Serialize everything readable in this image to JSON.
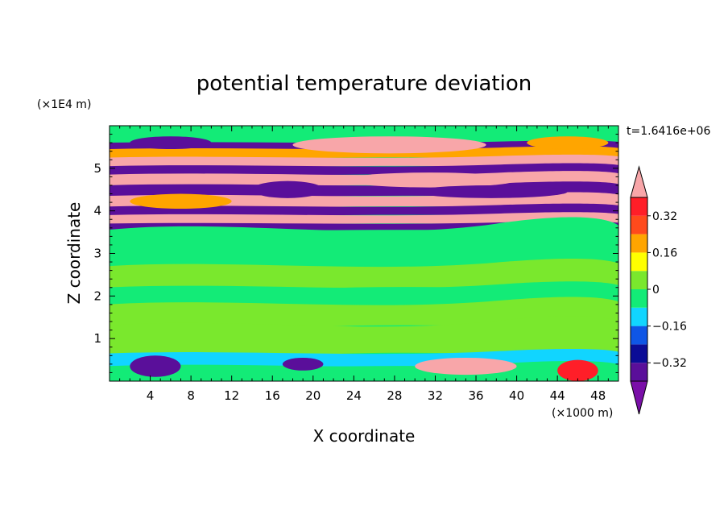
{
  "chart_data": {
    "type": "heatmap",
    "title": "potential temperature deviation",
    "xlabel": "X coordinate",
    "ylabel": "Z coordinate",
    "x_unit": "(×1000 m)",
    "y_unit": "(×1E4 m)",
    "time_label": "t=1.6416e+06",
    "xlim": [
      0,
      50
    ],
    "ylim": [
      0,
      6
    ],
    "x_ticks": [
      "4",
      "8",
      "12",
      "16",
      "20",
      "24",
      "28",
      "32",
      "36",
      "40",
      "44",
      "48"
    ],
    "y_ticks": [
      "1",
      "2",
      "3",
      "4",
      "5"
    ],
    "colorbar_labels": [
      "0.32",
      "0.16",
      "0",
      "−0.16",
      "−0.32"
    ],
    "levels": [
      -0.4,
      -0.32,
      -0.24,
      -0.16,
      -0.08,
      0.0,
      0.08,
      0.16,
      0.24,
      0.32,
      0.4
    ],
    "colors": [
      "#7a0fa8",
      "#5a0f9a",
      "#0b0c96",
      "#0f56e6",
      "#11d5ff",
      "#13eb77",
      "#7ae82d",
      "#ffff00",
      "#ffa500",
      "#ff4a1c",
      "#ff1e28",
      "#f8a6a9"
    ],
    "bands": [
      {
        "z": [
          5.6,
          5.98
        ],
        "value": 0.0
      },
      {
        "z": [
          5.45,
          5.6
        ],
        "value": -0.37
      },
      {
        "z": [
          5.25,
          5.45
        ],
        "value": 0.24
      },
      {
        "z": [
          5.05,
          5.25
        ],
        "value": 0.45
      },
      {
        "z": [
          4.85,
          5.05
        ],
        "value": -0.37
      },
      {
        "z": [
          4.6,
          4.85
        ],
        "value": 0.45
      },
      {
        "z": [
          4.35,
          4.6
        ],
        "value": -0.37
      },
      {
        "z": [
          4.1,
          4.35
        ],
        "value": 0.45
      },
      {
        "z": [
          3.9,
          4.1
        ],
        "value": -0.37
      },
      {
        "z": [
          3.7,
          3.9
        ],
        "value": 0.45
      },
      {
        "z": [
          3.55,
          3.7
        ],
        "value": -0.37
      },
      {
        "z": [
          2.7,
          3.55
        ],
        "value": 0.0
      },
      {
        "z": [
          2.2,
          2.7
        ],
        "value": 0.04
      },
      {
        "z": [
          1.8,
          2.2
        ],
        "value": 0.0
      },
      {
        "z": [
          1.3,
          1.8
        ],
        "value": 0.04
      },
      {
        "z": [
          0.65,
          1.3
        ],
        "value": 0.02
      },
      {
        "z": [
          0.35,
          0.65
        ],
        "value": -0.1
      },
      {
        "z": [
          0.0,
          0.35
        ],
        "value": 0.0
      }
    ],
    "features": [
      {
        "x": [
          2,
          10
        ],
        "z": [
          5.45,
          5.75
        ],
        "value": -0.37
      },
      {
        "x": [
          41,
          49
        ],
        "z": [
          5.45,
          5.75
        ],
        "value": 0.24
      },
      {
        "x": [
          18,
          37
        ],
        "z": [
          5.35,
          5.75
        ],
        "value": 0.45
      },
      {
        "x": [
          23,
          40
        ],
        "z": [
          4.55,
          4.9
        ],
        "value": 0.45
      },
      {
        "x": [
          14,
          21
        ],
        "z": [
          4.3,
          4.7
        ],
        "value": -0.37
      },
      {
        "x": [
          30,
          45
        ],
        "z": [
          4.3,
          4.6
        ],
        "value": -0.37
      },
      {
        "x": [
          2,
          12
        ],
        "z": [
          4.05,
          4.4
        ],
        "value": 0.24
      },
      {
        "x": [
          2,
          7
        ],
        "z": [
          0.1,
          0.6
        ],
        "value": -0.32
      },
      {
        "x": [
          17,
          21
        ],
        "z": [
          0.25,
          0.55
        ],
        "value": -0.32
      },
      {
        "x": [
          30,
          40
        ],
        "z": [
          0.15,
          0.55
        ],
        "value": 0.45
      },
      {
        "x": [
          44,
          48
        ],
        "z": [
          0.0,
          0.5
        ],
        "value": 0.34
      }
    ]
  }
}
